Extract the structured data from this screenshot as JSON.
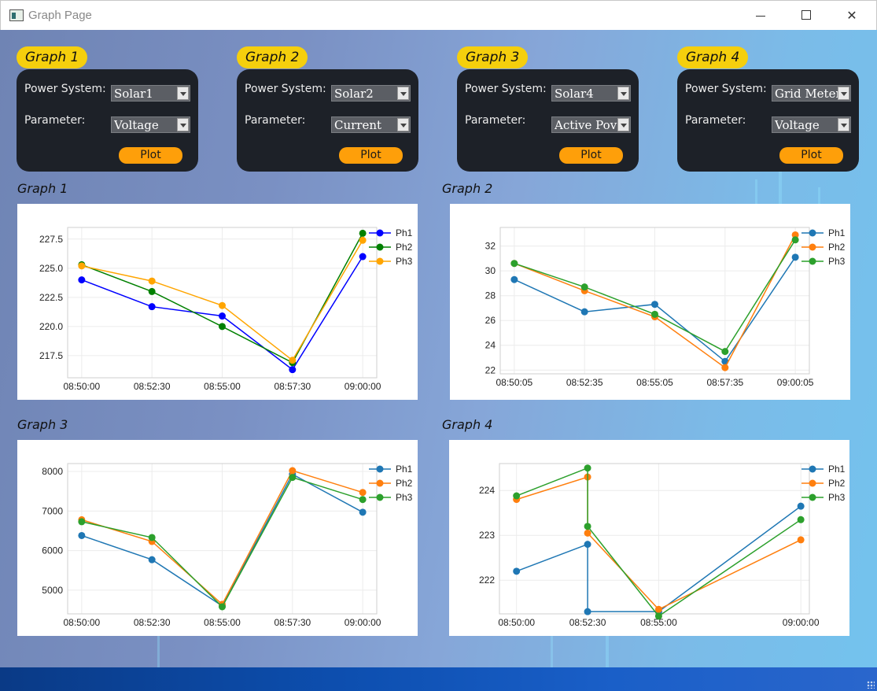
{
  "window": {
    "title": "Graph Page"
  },
  "cards": [
    {
      "badge": "Graph 1",
      "power_label": "Power System:",
      "power_value": "Solar1",
      "param_label": "Parameter:",
      "param_value": "Voltage",
      "plot_label": "Plot"
    },
    {
      "badge": "Graph 2",
      "power_label": "Power System:",
      "power_value": "Solar2",
      "param_label": "Parameter:",
      "param_value": "Current",
      "plot_label": "Plot"
    },
    {
      "badge": "Graph 3",
      "power_label": "Power System:",
      "power_value": "Solar4",
      "param_label": "Parameter:",
      "param_value": "Active Pov",
      "plot_label": "Plot"
    },
    {
      "badge": "Graph 4",
      "power_label": "Power System:",
      "power_value": "Grid Meter",
      "param_label": "Parameter:",
      "param_value": "Voltage",
      "plot_label": "Plot"
    }
  ],
  "graphs": [
    {
      "heading": "Graph 1"
    },
    {
      "heading": "Graph 2"
    },
    {
      "heading": "Graph 3"
    },
    {
      "heading": "Graph 4"
    }
  ],
  "chart_data": [
    {
      "type": "line",
      "x": [
        "08:50:00",
        "08:52:30",
        "08:55:00",
        "08:57:30",
        "09:00:00"
      ],
      "x_ticks": [
        "08:50:00",
        "08:52:30",
        "08:55:00",
        "08:57:30",
        "09:00:00"
      ],
      "ylim": [
        215.6,
        228.5
      ],
      "y_ticks": [
        217.5,
        220.0,
        222.5,
        225.0,
        227.5
      ],
      "y_tick_labels": [
        "217.5",
        "220.0",
        "222.5",
        "225.0",
        "227.5"
      ],
      "grid": true,
      "legend": "top-right",
      "series": [
        {
          "name": "Ph1",
          "color": "#0000ff",
          "values": [
            224.0,
            221.7,
            220.9,
            216.3,
            226.0
          ]
        },
        {
          "name": "Ph2",
          "color": "#008000",
          "values": [
            225.3,
            223.0,
            220.0,
            216.9,
            228.0
          ]
        },
        {
          "name": "Ph3",
          "color": "#ffa500",
          "values": [
            225.2,
            223.9,
            221.8,
            217.1,
            227.4
          ]
        }
      ]
    },
    {
      "type": "line",
      "x": [
        "08:50:05",
        "08:52:35",
        "08:55:05",
        "08:57:35",
        "09:00:05"
      ],
      "x_ticks": [
        "08:50:05",
        "08:52:35",
        "08:55:05",
        "08:57:35",
        "09:00:05"
      ],
      "ylim": [
        21.7,
        33.5
      ],
      "y_ticks": [
        22,
        24,
        26,
        28,
        30,
        32
      ],
      "y_tick_labels": [
        "22",
        "24",
        "26",
        "28",
        "30",
        "32"
      ],
      "grid": true,
      "legend": "top-right",
      "series": [
        {
          "name": "Ph1",
          "color": "#1f77b4",
          "values": [
            29.3,
            26.7,
            27.3,
            22.7,
            31.1
          ]
        },
        {
          "name": "Ph2",
          "color": "#ff7f0e",
          "values": [
            30.6,
            28.4,
            26.3,
            22.2,
            32.9
          ]
        },
        {
          "name": "Ph3",
          "color": "#2ca02c",
          "values": [
            30.6,
            28.7,
            26.5,
            23.5,
            32.5
          ]
        }
      ]
    },
    {
      "type": "line",
      "x": [
        "08:50:00",
        "08:52:30",
        "08:55:00",
        "08:57:30",
        "09:00:00"
      ],
      "x_ticks": [
        "08:50:00",
        "08:52:30",
        "08:55:00",
        "08:57:30",
        "09:00:00"
      ],
      "ylim": [
        4400,
        8200
      ],
      "y_ticks": [
        5000,
        6000,
        7000,
        8000
      ],
      "y_tick_labels": [
        "5000",
        "6000",
        "7000",
        "8000"
      ],
      "grid": true,
      "legend": "top-right",
      "series": [
        {
          "name": "Ph1",
          "color": "#1f77b4",
          "values": [
            6380,
            5770,
            4600,
            7930,
            6970
          ]
        },
        {
          "name": "Ph2",
          "color": "#ff7f0e",
          "values": [
            6780,
            6230,
            4640,
            8020,
            7470
          ]
        },
        {
          "name": "Ph3",
          "color": "#2ca02c",
          "values": [
            6730,
            6330,
            4580,
            7850,
            7290
          ]
        }
      ]
    },
    {
      "type": "line",
      "x_ticks": [
        "08:50:00",
        "08:52:30",
        "08:55:00",
        "09:00:00"
      ],
      "x_tick_positions": [
        0,
        2.5,
        5,
        10
      ],
      "xlim": [
        -0.6,
        10.3
      ],
      "ylim": [
        221.25,
        224.6
      ],
      "y_ticks": [
        222,
        223,
        224
      ],
      "y_tick_labels": [
        "222",
        "223",
        "224"
      ],
      "grid": true,
      "legend": "top-right",
      "series": [
        {
          "name": "Ph1",
          "color": "#1f77b4",
          "x": [
            0,
            2.5,
            2.5,
            5,
            10
          ],
          "values": [
            222.2,
            222.8,
            221.3,
            221.3,
            223.65
          ]
        },
        {
          "name": "Ph2",
          "color": "#ff7f0e",
          "x": [
            0,
            2.5,
            2.5,
            5,
            10
          ],
          "values": [
            223.8,
            224.3,
            223.05,
            221.35,
            222.9
          ]
        },
        {
          "name": "Ph3",
          "color": "#2ca02c",
          "x": [
            0,
            2.5,
            2.5,
            5,
            10
          ],
          "values": [
            223.88,
            224.5,
            223.2,
            221.2,
            223.35
          ]
        }
      ]
    }
  ]
}
